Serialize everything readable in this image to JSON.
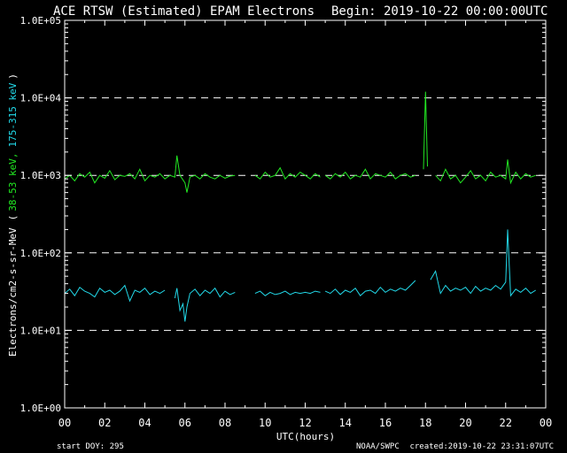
{
  "chart_data": {
    "type": "line",
    "title": "ACE RTSW (Estimated) EPAM Electrons",
    "begin": "Begin: 2019-10-22 00:00:00UTC",
    "xlabel": "UTC(hours)",
    "ylabel_prefix": "Electrons/cm2-s-sr-MeV",
    "ylabel_open": "(",
    "ylabel_series1": "38-53 keV,",
    "ylabel_series2": "175-315 keV",
    "ylabel_close": ")",
    "xlim": [
      0,
      24
    ],
    "ylim": [
      1,
      100000
    ],
    "yscale": "log",
    "xticks": [
      "00",
      "02",
      "04",
      "06",
      "08",
      "10",
      "12",
      "14",
      "16",
      "18",
      "20",
      "22",
      "00"
    ],
    "yticks": [
      "1.0E+00",
      "1.0E+01",
      "1.0E+02",
      "1.0E+03",
      "1.0E+04",
      "1.0E+05"
    ],
    "gridlines_y": [
      10,
      100,
      1000,
      10000
    ],
    "footer_left": "start DOY:  295",
    "footer_mid": "NOAA/SWPC",
    "footer_right": "created:2019-10-22 23:31:07UTC",
    "colors": {
      "series1": "#22e822",
      "series2": "#22d8e8",
      "axes": "#ffffff",
      "background": "#000000"
    },
    "series": [
      {
        "color": "#22e822",
        "segments": [
          {
            "x": [
              0.0,
              0.25,
              0.5,
              0.75,
              1.0,
              1.25,
              1.5,
              1.75,
              2.0,
              2.25,
              2.5,
              2.75,
              3.0,
              3.25,
              3.5,
              3.75,
              4.0,
              4.25,
              4.5,
              4.75,
              5.0,
              5.25,
              5.5,
              5.6,
              5.75,
              6.0,
              6.1,
              6.25,
              6.5,
              6.75,
              7.0,
              7.25,
              7.5,
              7.75,
              8.0,
              8.25,
              8.5
            ],
            "y": [
              900,
              1000,
              850,
              1050,
              950,
              1100,
              800,
              1000,
              920,
              1150,
              880,
              1000,
              970,
              1050,
              900,
              1200,
              850,
              1000,
              950,
              1050,
              900,
              1000,
              950,
              1800,
              1000,
              800,
              600,
              950,
              1000,
              900,
              1050,
              950,
              900,
              1000,
              920,
              980,
              1000
            ]
          },
          {
            "x": [
              9.5,
              9.75,
              10.0,
              10.25,
              10.5,
              10.75,
              11.0,
              11.25,
              11.5,
              11.75,
              12.0,
              12.25,
              12.5,
              12.75
            ],
            "y": [
              1000,
              900,
              1100,
              950,
              1000,
              1250,
              900,
              1050,
              950,
              1100,
              1000,
              900,
              1050,
              950
            ]
          },
          {
            "x": [
              13.0,
              13.25,
              13.5,
              13.75,
              14.0,
              14.25,
              14.5,
              14.75,
              15.0,
              15.25,
              15.5,
              15.75,
              16.0,
              16.25,
              16.5,
              16.75,
              17.0,
              17.25,
              17.5
            ],
            "y": [
              1000,
              900,
              1050,
              950,
              1100,
              900,
              1000,
              950,
              1200,
              900,
              1050,
              1000,
              950,
              1100,
              900,
              1000,
              1050,
              950,
              1000
            ]
          },
          {
            "x": [
              17.9,
              18.0,
              18.1
            ],
            "y": [
              1200,
              12000,
              1300
            ]
          },
          {
            "x": [
              18.5,
              18.75,
              19.0,
              19.25,
              19.5,
              19.75,
              20.0,
              20.25,
              20.5,
              20.75,
              21.0,
              21.25,
              21.5,
              21.75,
              22.0,
              22.1,
              22.25,
              22.5,
              22.75,
              23.0,
              23.25,
              23.5
            ],
            "y": [
              1000,
              850,
              1200,
              900,
              1000,
              800,
              950,
              1150,
              900,
              1000,
              850,
              1100,
              950,
              1000,
              900,
              1600,
              800,
              1100,
              900,
              1050,
              950,
              1000
            ]
          }
        ]
      },
      {
        "color": "#22d8e8",
        "segments": [
          {
            "x": [
              0.0,
              0.25,
              0.5,
              0.75,
              1.0,
              1.25,
              1.5,
              1.75,
              2.0,
              2.25,
              2.5,
              2.75,
              3.0,
              3.25,
              3.5,
              3.75,
              4.0,
              4.25,
              4.5,
              4.75,
              5.0
            ],
            "y": [
              30,
              34,
              28,
              36,
              32,
              30,
              27,
              35,
              31,
              33,
              29,
              32,
              38,
              24,
              33,
              31,
              35,
              29,
              32,
              30,
              33
            ]
          },
          {
            "x": [
              5.5,
              5.6,
              5.75,
              5.9,
              6.0,
              6.1,
              6.25,
              6.5,
              6.75,
              7.0,
              7.25,
              7.5,
              7.75,
              8.0,
              8.25,
              8.5
            ],
            "y": [
              26,
              35,
              18,
              22,
              13,
              20,
              30,
              34,
              28,
              33,
              30,
              35,
              27,
              32,
              29,
              31
            ]
          },
          {
            "x": [
              9.5,
              9.75,
              10.0,
              10.25,
              10.5,
              10.75,
              11.0,
              11.25,
              11.5,
              11.75,
              12.0,
              12.25,
              12.5,
              12.75
            ],
            "y": [
              30,
              32,
              28,
              31,
              29,
              30,
              32,
              29,
              31,
              30,
              31,
              30,
              32,
              31
            ]
          },
          {
            "x": [
              13.0,
              13.25,
              13.5,
              13.75,
              14.0,
              14.25,
              14.5,
              14.75,
              15.0,
              15.25,
              15.5,
              15.75,
              16.0,
              16.25,
              16.5,
              16.75,
              17.0,
              17.25,
              17.5
            ],
            "y": [
              32,
              30,
              34,
              29,
              33,
              31,
              35,
              28,
              32,
              33,
              30,
              36,
              31,
              34,
              32,
              35,
              33,
              38,
              44
            ]
          },
          {
            "x": [
              18.25,
              18.5,
              18.75,
              19.0,
              19.25,
              19.5,
              19.75,
              20.0,
              20.25,
              20.5,
              20.75,
              21.0,
              21.25,
              21.5,
              21.75,
              22.0,
              22.1,
              22.25,
              22.5,
              22.75,
              23.0,
              23.25,
              23.5
            ],
            "y": [
              45,
              58,
              30,
              38,
              32,
              35,
              33,
              36,
              30,
              37,
              32,
              35,
              33,
              38,
              34,
              42,
              200,
              28,
              34,
              31,
              35,
              30,
              33
            ]
          }
        ]
      }
    ]
  }
}
